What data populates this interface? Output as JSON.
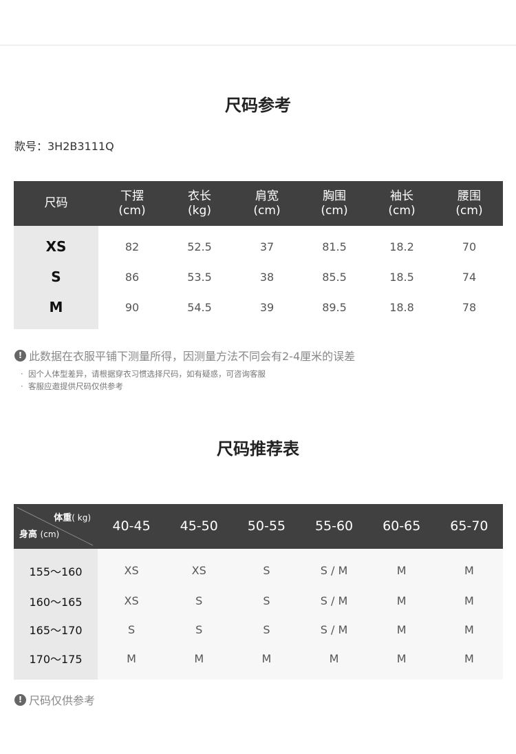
{
  "section1": {
    "title": "尺码参考",
    "style_no": "款号：3H2B3111Q",
    "headers": [
      "尺码",
      "下摆\n(cm)",
      "衣长\n(kg)",
      "肩宽\n(cm)",
      "胸围\n(cm)",
      "袖长\n(cm)",
      "腰围\n(cm)"
    ],
    "rows": [
      [
        "XS",
        "82",
        "52.5",
        "37",
        "81.5",
        "18.2",
        "70"
      ],
      [
        "S",
        "86",
        "53.5",
        "38",
        "85.5",
        "18.5",
        "74"
      ],
      [
        "M",
        "90",
        "54.5",
        "39",
        "89.5",
        "18.8",
        "78"
      ]
    ],
    "note": "此数据在衣服平铺下测量所得，因测量方法不同会有2-4厘米的误差",
    "bullets": [
      "因个人体型差异，请根据穿衣习惯选择尺码，如有疑惑，可咨询客服",
      "客服应邀提供尺码仅供参考"
    ]
  },
  "section2": {
    "title": "尺码推荐表",
    "corner_weight": "体重",
    "corner_weight_unit": "( kg)",
    "corner_height": "身高",
    "corner_height_unit": "(cm)",
    "headers": [
      "40-45",
      "45-50",
      "50-55",
      "55-60",
      "60-65",
      "65-70"
    ],
    "rows": [
      [
        "155～160",
        "XS",
        "XS",
        "S",
        "S / M",
        "M",
        "M"
      ],
      [
        "160～165",
        "XS",
        "S",
        "S",
        "S / M",
        "M",
        "M"
      ],
      [
        "165～170",
        "S",
        "S",
        "S",
        "S / M",
        "M",
        "M"
      ],
      [
        "170～175",
        "M",
        "M",
        "M",
        "M",
        "M",
        "M"
      ]
    ],
    "note": "尺码仅供参考"
  },
  "colors": {
    "header_bg": "#404040",
    "row_header_bg": "#e9e9e9",
    "body_bg2": "#f7f7f7"
  }
}
